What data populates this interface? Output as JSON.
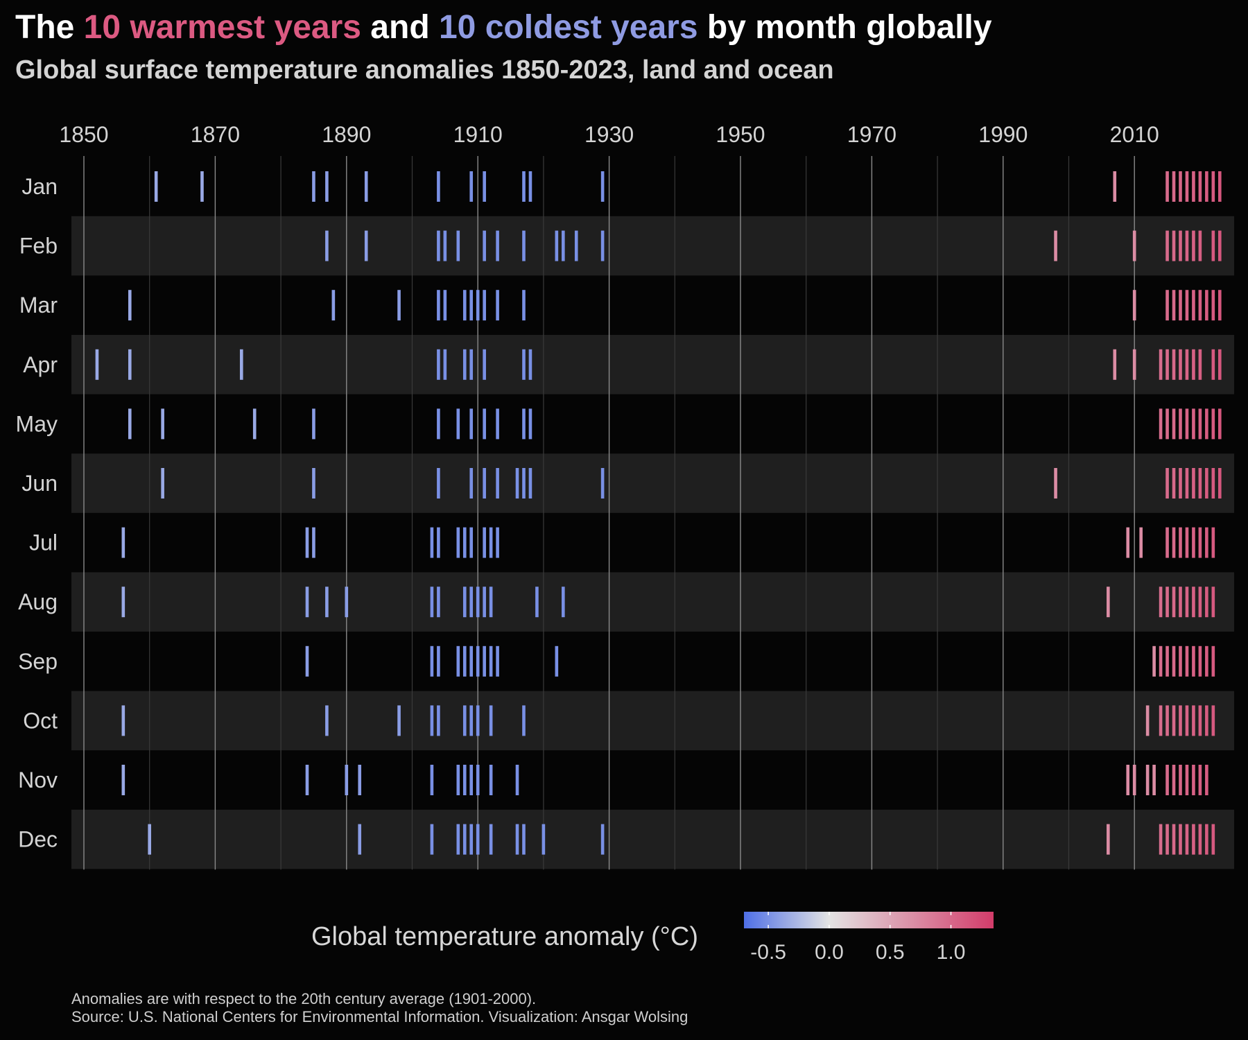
{
  "header": {
    "title_prefix": "The ",
    "title_warm": "10 warmest years",
    "title_mid": " and ",
    "title_cold": "10 coldest years",
    "title_suffix": " by month globally",
    "subtitle": "Global surface temperature anomalies 1850-2023, land and ocean"
  },
  "colors": {
    "background": "#050505",
    "band": "#1f1f1f",
    "warm_accent": "#dc5a82",
    "cold_accent": "#8f9be2",
    "scale_low": "#4f6fe6",
    "scale_mid": "#e3e3e3",
    "scale_high": "#d33c6a"
  },
  "legend": {
    "title": "Global temperature anomaly (°C)",
    "ticks": [
      "-0.5",
      "0.0",
      "0.5",
      "1.0"
    ],
    "tick_values": [
      -0.5,
      0.0,
      0.5,
      1.0
    ],
    "range": [
      -0.7,
      1.35
    ]
  },
  "caption": {
    "line1": "Anomalies are with respect to the 20th century average (1901-2000).",
    "line2": "Source: U.S. National Centers for Environmental Information. Visualization: Ansgar Wolsing"
  },
  "chart_data": {
    "type": "heatmap",
    "title": "The 10 warmest years and 10 coldest years by month globally",
    "subtitle": "Global surface temperature anomalies 1850-2023, land and ocean",
    "xlim": [
      1848,
      2025
    ],
    "x_ticks": [
      1850,
      1870,
      1890,
      1910,
      1930,
      1950,
      1970,
      1990,
      2010
    ],
    "minor_x_ticks": [
      1860,
      1880,
      1900,
      1920,
      1940,
      1960,
      1980,
      2000
    ],
    "months": [
      "Jan",
      "Feb",
      "Mar",
      "Apr",
      "May",
      "Jun",
      "Jul",
      "Aug",
      "Sep",
      "Oct",
      "Nov",
      "Dec"
    ],
    "rows": [
      {
        "month": "Jan",
        "coldest": [
          1861,
          1868,
          1885,
          1887,
          1893,
          1904,
          1909,
          1911,
          1917,
          1918,
          1929
        ],
        "warmest": [
          2007,
          2015,
          2016,
          2017,
          2018,
          2019,
          2020,
          2021,
          2022,
          2023
        ]
      },
      {
        "month": "Feb",
        "coldest": [
          1887,
          1893,
          1904,
          1905,
          1907,
          1911,
          1913,
          1917,
          1922,
          1923,
          1925,
          1929
        ],
        "warmest": [
          1998,
          2010,
          2015,
          2016,
          2017,
          2018,
          2019,
          2020,
          2022,
          2023
        ]
      },
      {
        "month": "Mar",
        "coldest": [
          1857,
          1888,
          1898,
          1904,
          1905,
          1908,
          1909,
          1910,
          1911,
          1913,
          1917
        ],
        "warmest": [
          2010,
          2015,
          2016,
          2017,
          2018,
          2019,
          2020,
          2021,
          2022,
          2023
        ]
      },
      {
        "month": "Apr",
        "coldest": [
          1852,
          1857,
          1874,
          1904,
          1905,
          1908,
          1909,
          1911,
          1917,
          1918
        ],
        "warmest": [
          2007,
          2010,
          2014,
          2015,
          2016,
          2017,
          2018,
          2019,
          2020,
          2022,
          2023
        ]
      },
      {
        "month": "May",
        "coldest": [
          1857,
          1862,
          1876,
          1885,
          1904,
          1907,
          1909,
          1911,
          1913,
          1917,
          1918
        ],
        "warmest": [
          2014,
          2015,
          2016,
          2017,
          2018,
          2019,
          2020,
          2021,
          2022,
          2023
        ]
      },
      {
        "month": "Jun",
        "coldest": [
          1862,
          1885,
          1904,
          1909,
          1911,
          1913,
          1916,
          1917,
          1918,
          1929
        ],
        "warmest": [
          1998,
          2015,
          2016,
          2017,
          2018,
          2019,
          2020,
          2021,
          2022,
          2023
        ]
      },
      {
        "month": "Jul",
        "coldest": [
          1856,
          1884,
          1885,
          1903,
          1904,
          1907,
          1908,
          1909,
          1911,
          1912,
          1913
        ],
        "warmest": [
          2009,
          2011,
          2015,
          2016,
          2017,
          2018,
          2019,
          2020,
          2021,
          2022
        ]
      },
      {
        "month": "Aug",
        "coldest": [
          1856,
          1884,
          1887,
          1890,
          1903,
          1904,
          1908,
          1909,
          1910,
          1911,
          1912,
          1919,
          1923
        ],
        "warmest": [
          2006,
          2014,
          2015,
          2016,
          2017,
          2018,
          2019,
          2020,
          2021,
          2022
        ]
      },
      {
        "month": "Sep",
        "coldest": [
          1884,
          1903,
          1904,
          1907,
          1908,
          1909,
          1910,
          1911,
          1912,
          1913,
          1922
        ],
        "warmest": [
          2013,
          2014,
          2015,
          2016,
          2017,
          2018,
          2019,
          2020,
          2021,
          2022
        ]
      },
      {
        "month": "Oct",
        "coldest": [
          1856,
          1887,
          1898,
          1903,
          1904,
          1908,
          1909,
          1910,
          1912,
          1917
        ],
        "warmest": [
          2012,
          2014,
          2015,
          2016,
          2017,
          2018,
          2019,
          2020,
          2021,
          2022
        ]
      },
      {
        "month": "Nov",
        "coldest": [
          1856,
          1884,
          1890,
          1892,
          1903,
          1907,
          1908,
          1909,
          1910,
          1912,
          1916
        ],
        "warmest": [
          2009,
          2010,
          2012,
          2013,
          2015,
          2016,
          2017,
          2018,
          2019,
          2020,
          2021
        ]
      },
      {
        "month": "Dec",
        "coldest": [
          1860,
          1892,
          1903,
          1907,
          1908,
          1909,
          1910,
          1912,
          1916,
          1917,
          1920,
          1929
        ],
        "warmest": [
          2006,
          2014,
          2015,
          2016,
          2017,
          2018,
          2019,
          2020,
          2021,
          2022
        ]
      }
    ],
    "legend_title": "Global temperature anomaly (°C)",
    "legend_ticks": [
      -0.5,
      0.0,
      0.5,
      1.0
    ]
  }
}
